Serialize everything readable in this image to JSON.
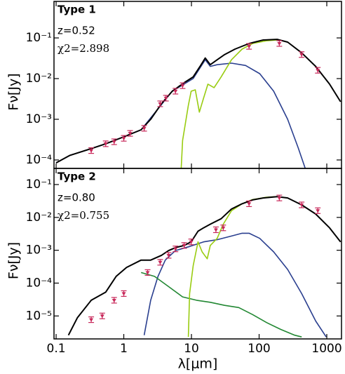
{
  "chart_data": [
    {
      "type": "line",
      "xscale": "log",
      "yscale": "log",
      "ylabel": "Fν[Jy]",
      "annotations": [
        "Type 1",
        "z=0.52",
        "χ2=2.898"
      ],
      "xlim": [
        0.093,
        1650
      ],
      "xticks": [
        0.1,
        1,
        10,
        100,
        1000
      ],
      "ylim": [
        6.2e-05,
        0.79
      ],
      "yticks": [
        {
          "value": 0.1,
          "label": "10⁻¹"
        },
        {
          "value": 0.01,
          "label": "10⁻²"
        },
        {
          "value": 0.001,
          "label": "10⁻³"
        },
        {
          "value": 0.0001,
          "label": "10⁻⁴"
        }
      ],
      "series": [
        {
          "color": "#2a3f8f",
          "x": [
            0.1,
            0.16,
            0.33,
            0.54,
            1.0,
            1.8,
            5.2,
            10.6,
            16,
            19,
            24,
            39,
            63,
            102,
            164,
            264,
            378,
            480
          ],
          "values": [
            8.5e-05,
            0.00013,
            0.00019,
            0.00025,
            0.00037,
            0.00055,
            0.0049,
            0.01,
            0.029,
            0.02,
            0.022,
            0.024,
            0.021,
            0.0132,
            0.0049,
            0.001,
            0.0002,
            6.2e-05
          ]
        },
        {
          "color": "#99cc11",
          "x": [
            7.06,
            7.4,
            9.0,
            9.9,
            11.4,
            13.1,
            15.1,
            17.5,
            21.6,
            27.5,
            39,
            56,
            80,
            129,
            185
          ],
          "values": [
            6.2e-05,
            0.0003,
            0.0022,
            0.0049,
            0.0053,
            0.0015,
            0.0033,
            0.0073,
            0.006,
            0.011,
            0.029,
            0.053,
            0.073,
            0.085,
            0.089
          ]
        },
        {
          "color": "#000000",
          "x": [
            0.1,
            0.16,
            0.33,
            0.54,
            1.0,
            1.8,
            2.5,
            3.6,
            5.2,
            7.8,
            10.6,
            13.4,
            16,
            19,
            24,
            31,
            44,
            71,
            115,
            185,
            264,
            425,
            686,
            1100,
            1600
          ],
          "values": [
            8.5e-05,
            0.00013,
            0.00019,
            0.00025,
            0.00037,
            0.00055,
            0.001,
            0.0024,
            0.0049,
            0.0079,
            0.011,
            0.02,
            0.032,
            0.022,
            0.029,
            0.039,
            0.053,
            0.073,
            0.089,
            0.092,
            0.079,
            0.043,
            0.02,
            0.0073,
            0.0027
          ]
        }
      ],
      "points": {
        "color": "#c8285a",
        "x": [
          0.33,
          0.54,
          0.72,
          1.0,
          1.24,
          2.0,
          3.45,
          4.2,
          5.8,
          7.4,
          71,
          199,
          425,
          737
        ],
        "values": [
          0.00017,
          0.00025,
          0.00028,
          0.00034,
          0.00045,
          0.0006,
          0.0024,
          0.0033,
          0.0049,
          0.0067,
          0.062,
          0.073,
          0.039,
          0.016
        ]
      }
    },
    {
      "type": "line",
      "xscale": "log",
      "yscale": "log",
      "ylabel": "Fν[Jy]",
      "xlabel": "λ[μm]",
      "annotations": [
        "Type 2",
        "z=0.80",
        "χ2=0.755"
      ],
      "xlim": [
        0.093,
        1650
      ],
      "xticks": [
        0.1,
        1,
        10,
        100,
        1000
      ],
      "ylim": [
        2e-06,
        0.31
      ],
      "yticks": [
        {
          "value": 0.1,
          "label": "10⁻¹"
        },
        {
          "value": 0.01,
          "label": "10⁻²"
        },
        {
          "value": 0.001,
          "label": "10⁻³"
        },
        {
          "value": 0.0001,
          "label": "10⁻⁴"
        },
        {
          "value": 1e-05,
          "label": "10⁻⁵"
        }
      ],
      "series": [
        {
          "color": "#2a3f8f",
          "x": [
            2.0,
            2.5,
            3.2,
            4.1,
            5.8,
            9.4,
            15.1,
            24,
            39,
            56,
            71,
            102,
            164,
            264,
            425,
            686,
            980
          ],
          "values": [
            2.6e-06,
            3e-05,
            0.00016,
            0.0005,
            0.00098,
            0.0013,
            0.0018,
            0.0021,
            0.0027,
            0.0033,
            0.0033,
            0.0023,
            0.00089,
            0.00026,
            4.8e-05,
            7e-06,
            2.3e-06
          ]
        },
        {
          "color": "#228833",
          "x": [
            1.8,
            2.85,
            4.6,
            7.4,
            11.9,
            19,
            31,
            50,
            80,
            129,
            208,
            336,
            425
          ],
          "values": [
            0.00021,
            0.00016,
            7.8e-05,
            3.8e-05,
            3e-05,
            2.6e-05,
            2.1e-05,
            1.8e-05,
            1.1e-05,
            6.3e-06,
            3.9e-06,
            2.6e-06,
            2.3e-06
          ]
        },
        {
          "color": "#99cc11",
          "x": [
            9.0,
            9.4,
            10.6,
            12.5,
            14.4,
            17.1,
            19,
            24,
            29.5,
            39,
            56,
            80,
            129,
            185
          ],
          "values": [
            2.3e-06,
            4.8e-05,
            0.00034,
            0.0018,
            0.00089,
            0.00055,
            0.0014,
            0.0023,
            0.0062,
            0.016,
            0.026,
            0.035,
            0.041,
            0.043
          ]
        },
        {
          "color": "#000000",
          "x": [
            0.152,
            0.207,
            0.33,
            0.54,
            0.77,
            1.1,
            1.8,
            2.5,
            3.6,
            4.6,
            5.8,
            7.8,
            9.9,
            12.5,
            15.1,
            19,
            27.5,
            39,
            56,
            80,
            115,
            185,
            264,
            425,
            686,
            1100,
            1600
          ],
          "values": [
            2.6e-06,
            8.9e-06,
            3e-05,
            5.3e-05,
            0.00016,
            0.0003,
            0.0005,
            0.0005,
            0.0007,
            0.00098,
            0.0012,
            0.0014,
            0.0018,
            0.0038,
            0.0048,
            0.0062,
            0.0091,
            0.018,
            0.026,
            0.034,
            0.039,
            0.043,
            0.039,
            0.024,
            0.0127,
            0.0048,
            0.0018
          ]
        }
      ],
      "points": {
        "color": "#c8285a",
        "x": [
          0.33,
          0.48,
          0.72,
          1.0,
          2.25,
          3.45,
          4.6,
          5.8,
          7.8,
          9.9,
          23,
          29.5,
          71,
          199,
          425,
          737
        ],
        "values": [
          7.7e-06,
          1e-05,
          3e-05,
          4.8e-05,
          0.00021,
          0.00043,
          0.0007,
          0.0011,
          0.0014,
          0.0018,
          0.0042,
          0.0048,
          0.026,
          0.039,
          0.024,
          0.016
        ]
      }
    }
  ]
}
